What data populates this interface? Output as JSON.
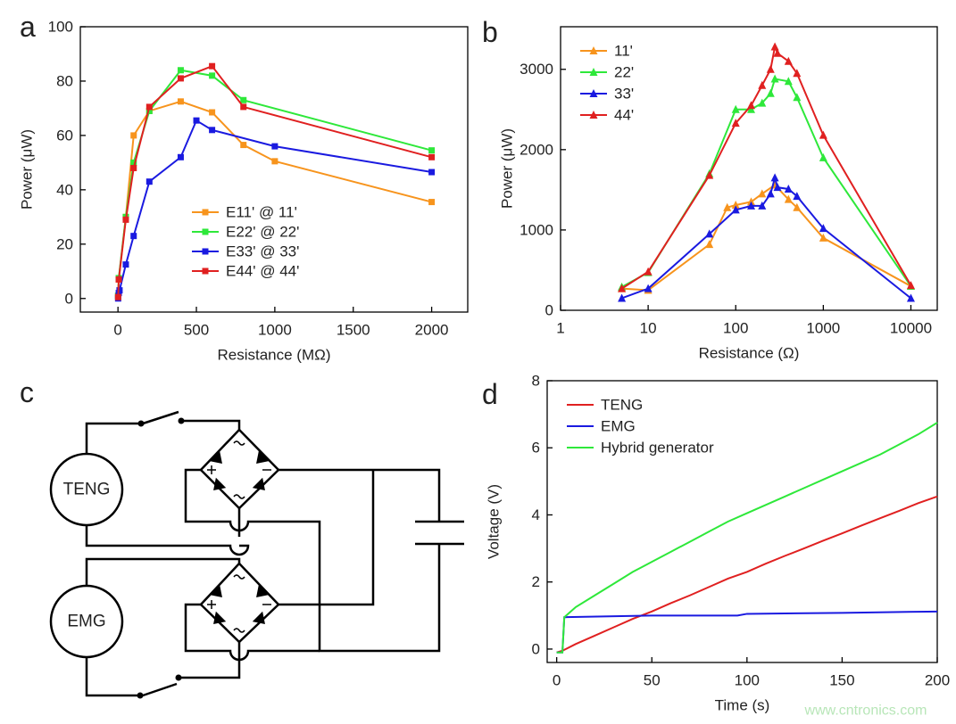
{
  "chart_data": [
    {
      "type": "line",
      "panel": "a",
      "x_label": "Resistance (MΩ)",
      "y_label": "Power (μW)",
      "marker": "square",
      "legend": "center",
      "xlim": [
        -240,
        2230
      ],
      "xticks": [
        0,
        500,
        1000,
        1500,
        2000
      ],
      "ylim": [
        -5,
        100
      ],
      "yticks": [
        0,
        20,
        40,
        60,
        80,
        100
      ],
      "series": [
        {
          "name": "E11' @ 11'",
          "color": "#f7941d",
          "x": [
            1,
            5,
            50,
            100,
            200,
            400,
            600,
            800,
            1000,
            2000
          ],
          "values": [
            1,
            7,
            30,
            60,
            69,
            72.5,
            68.5,
            56.5,
            50.5,
            35.5
          ]
        },
        {
          "name": "E22' @ 22'",
          "color": "#2ee83a",
          "x": [
            1,
            5,
            50,
            100,
            200,
            400,
            600,
            800,
            2000
          ],
          "values": [
            1,
            7.5,
            30,
            50,
            69,
            84,
            82,
            73,
            54.5
          ]
        },
        {
          "name": "E33' @ 33'",
          "color": "#1a1ae0",
          "x": [
            1,
            5,
            10,
            50,
            100,
            200,
            400,
            500,
            600,
            1000,
            2000
          ],
          "values": [
            0,
            2,
            3,
            12.5,
            23,
            43,
            52,
            65.5,
            62,
            56,
            46.5
          ]
        },
        {
          "name": "E44' @ 44'",
          "color": "#e02020",
          "x": [
            1,
            5,
            50,
            100,
            200,
            400,
            600,
            800,
            2000
          ],
          "values": [
            0.5,
            7,
            29,
            48,
            70.5,
            81,
            85.5,
            70.5,
            52
          ]
        }
      ]
    },
    {
      "type": "line",
      "panel": "b",
      "x_label": "Resistance (Ω)",
      "y_label": "Power (μW)",
      "marker": "triangle",
      "legend": "upper left",
      "log_x": true,
      "xlim": [
        1,
        20000
      ],
      "xticks": [
        1,
        10,
        100,
        1000,
        10000
      ],
      "ylim": [
        0,
        3530
      ],
      "yticks": [
        0,
        1000,
        2000,
        3000
      ],
      "series": [
        {
          "name": "11'",
          "color": "#f7941d",
          "x": [
            5,
            10,
            50,
            80,
            100,
            150,
            200,
            280,
            400,
            500,
            1000,
            10000
          ],
          "values": [
            270,
            250,
            820,
            1280,
            1310,
            1350,
            1450,
            1560,
            1380,
            1280,
            900,
            300
          ]
        },
        {
          "name": "22'",
          "color": "#2ee83a",
          "x": [
            5,
            10,
            50,
            100,
            150,
            200,
            250,
            280,
            400,
            500,
            1000,
            10000
          ],
          "values": [
            290,
            470,
            1700,
            2500,
            2500,
            2580,
            2700,
            2880,
            2850,
            2650,
            1900,
            300
          ]
        },
        {
          "name": "33'",
          "color": "#1a1ae0",
          "x": [
            5,
            10,
            50,
            100,
            150,
            200,
            250,
            280,
            300,
            400,
            500,
            1000,
            10000
          ],
          "values": [
            150,
            270,
            950,
            1250,
            1300,
            1300,
            1450,
            1650,
            1530,
            1510,
            1420,
            1020,
            150
          ]
        },
        {
          "name": "44'",
          "color": "#e02020",
          "x": [
            5,
            10,
            50,
            100,
            150,
            200,
            250,
            280,
            300,
            400,
            500,
            1000,
            10000
          ],
          "values": [
            270,
            480,
            1680,
            2330,
            2550,
            2800,
            3000,
            3280,
            3200,
            3100,
            2950,
            2180,
            310
          ]
        }
      ]
    },
    {
      "type": "line",
      "panel": "d",
      "x_label": "Time (s)",
      "y_label": "Voltage (V)",
      "legend": "upper left",
      "xlim": [
        -5,
        200
      ],
      "xticks": [
        0,
        50,
        100,
        150,
        200
      ],
      "ylim": [
        -0.4,
        8
      ],
      "yticks": [
        0,
        2,
        4,
        6,
        8
      ],
      "series": [
        {
          "name": "TENG",
          "color": "#e02020",
          "x": [
            0,
            3,
            10,
            20,
            30,
            40,
            50,
            60,
            70,
            80,
            90,
            100,
            110,
            120,
            130,
            140,
            150,
            160,
            170,
            180,
            190,
            200
          ],
          "values": [
            -0.1,
            -0.05,
            0.15,
            0.4,
            0.65,
            0.9,
            1.12,
            1.37,
            1.6,
            1.85,
            2.1,
            2.3,
            2.55,
            2.78,
            3.0,
            3.23,
            3.45,
            3.68,
            3.9,
            4.12,
            4.35,
            4.55
          ]
        },
        {
          "name": "EMG",
          "color": "#1a1ae0",
          "x": [
            0,
            3,
            4,
            50,
            95,
            100,
            150,
            200
          ],
          "values": [
            -0.1,
            -0.1,
            0.95,
            1.0,
            1.0,
            1.05,
            1.08,
            1.12
          ]
        },
        {
          "name": "Hybrid generator",
          "color": "#2ee83a",
          "x": [
            0,
            3,
            4,
            10,
            20,
            30,
            40,
            50,
            60,
            70,
            80,
            90,
            100,
            110,
            120,
            130,
            140,
            150,
            160,
            170,
            180,
            190,
            200
          ],
          "values": [
            -0.1,
            -0.1,
            0.95,
            1.25,
            1.6,
            1.95,
            2.3,
            2.6,
            2.9,
            3.2,
            3.5,
            3.8,
            4.05,
            4.3,
            4.55,
            4.8,
            5.05,
            5.3,
            5.55,
            5.8,
            6.1,
            6.4,
            6.75
          ]
        }
      ]
    }
  ],
  "diagram": {
    "panel": "c",
    "sources": [
      "TENG",
      "EMG"
    ]
  },
  "watermark": "www.cntronics.com"
}
